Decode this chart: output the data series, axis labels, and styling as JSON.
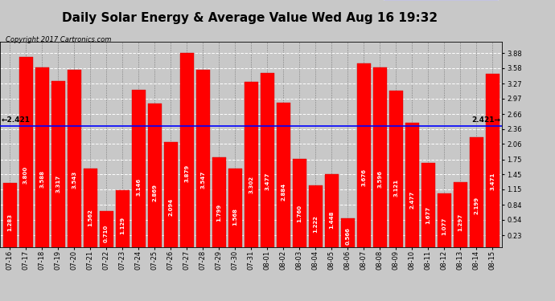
{
  "title": "Daily Solar Energy & Average Value Wed Aug 16 19:32",
  "copyright": "Copyright 2017 Cartronics.com",
  "categories": [
    "07-16",
    "07-17",
    "07-18",
    "07-19",
    "07-20",
    "07-21",
    "07-22",
    "07-23",
    "07-24",
    "07-25",
    "07-26",
    "07-27",
    "07-28",
    "07-29",
    "07-30",
    "07-31",
    "08-01",
    "08-02",
    "08-03",
    "08-04",
    "08-05",
    "08-06",
    "08-07",
    "08-08",
    "08-09",
    "08-10",
    "08-11",
    "08-12",
    "08-13",
    "08-14",
    "08-15"
  ],
  "values": [
    1.283,
    3.8,
    3.588,
    3.317,
    3.543,
    1.562,
    0.71,
    1.129,
    3.146,
    2.869,
    2.094,
    3.879,
    3.547,
    1.799,
    1.568,
    3.302,
    3.477,
    2.884,
    1.76,
    1.222,
    1.448,
    0.566,
    3.676,
    3.596,
    3.121,
    2.477,
    1.677,
    1.077,
    1.297,
    2.199,
    3.471
  ],
  "average": 2.421,
  "bar_color": "#ff0000",
  "bar_edge_color": "#cc0000",
  "average_line_color": "#0000ff",
  "background_color": "#c8c8c8",
  "plot_bg_color": "#c8c8c8",
  "yticks": [
    0.23,
    0.54,
    0.84,
    1.15,
    1.45,
    1.75,
    2.06,
    2.36,
    2.66,
    2.97,
    3.27,
    3.58,
    3.88
  ],
  "ylim": [
    0.0,
    4.1
  ],
  "title_fontsize": 11,
  "copyright_fontsize": 6,
  "label_fontsize": 5,
  "tick_fontsize": 6,
  "legend_avg_color": "#0000cc",
  "legend_daily_color": "#ff0000",
  "legend_bg_color": "#0000aa"
}
